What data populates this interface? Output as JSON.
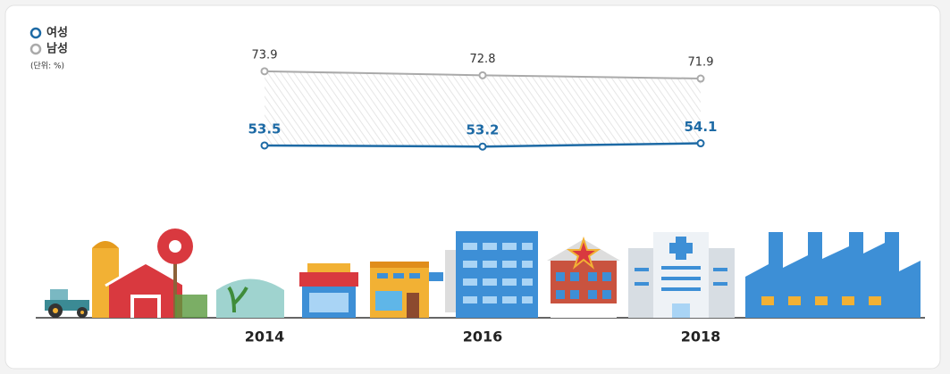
{
  "chart_data": {
    "type": "line",
    "unit_label": "(단위: %)",
    "categories": [
      "2014",
      "2016",
      "2018"
    ],
    "series": [
      {
        "name": "여성",
        "color": "#1d6aa5",
        "values": [
          53.5,
          53.2,
          54.1
        ]
      },
      {
        "name": "남성",
        "color": "#aaaaaa",
        "values": [
          73.9,
          72.8,
          71.9
        ]
      }
    ],
    "ylim": [
      40,
      80
    ]
  }
}
